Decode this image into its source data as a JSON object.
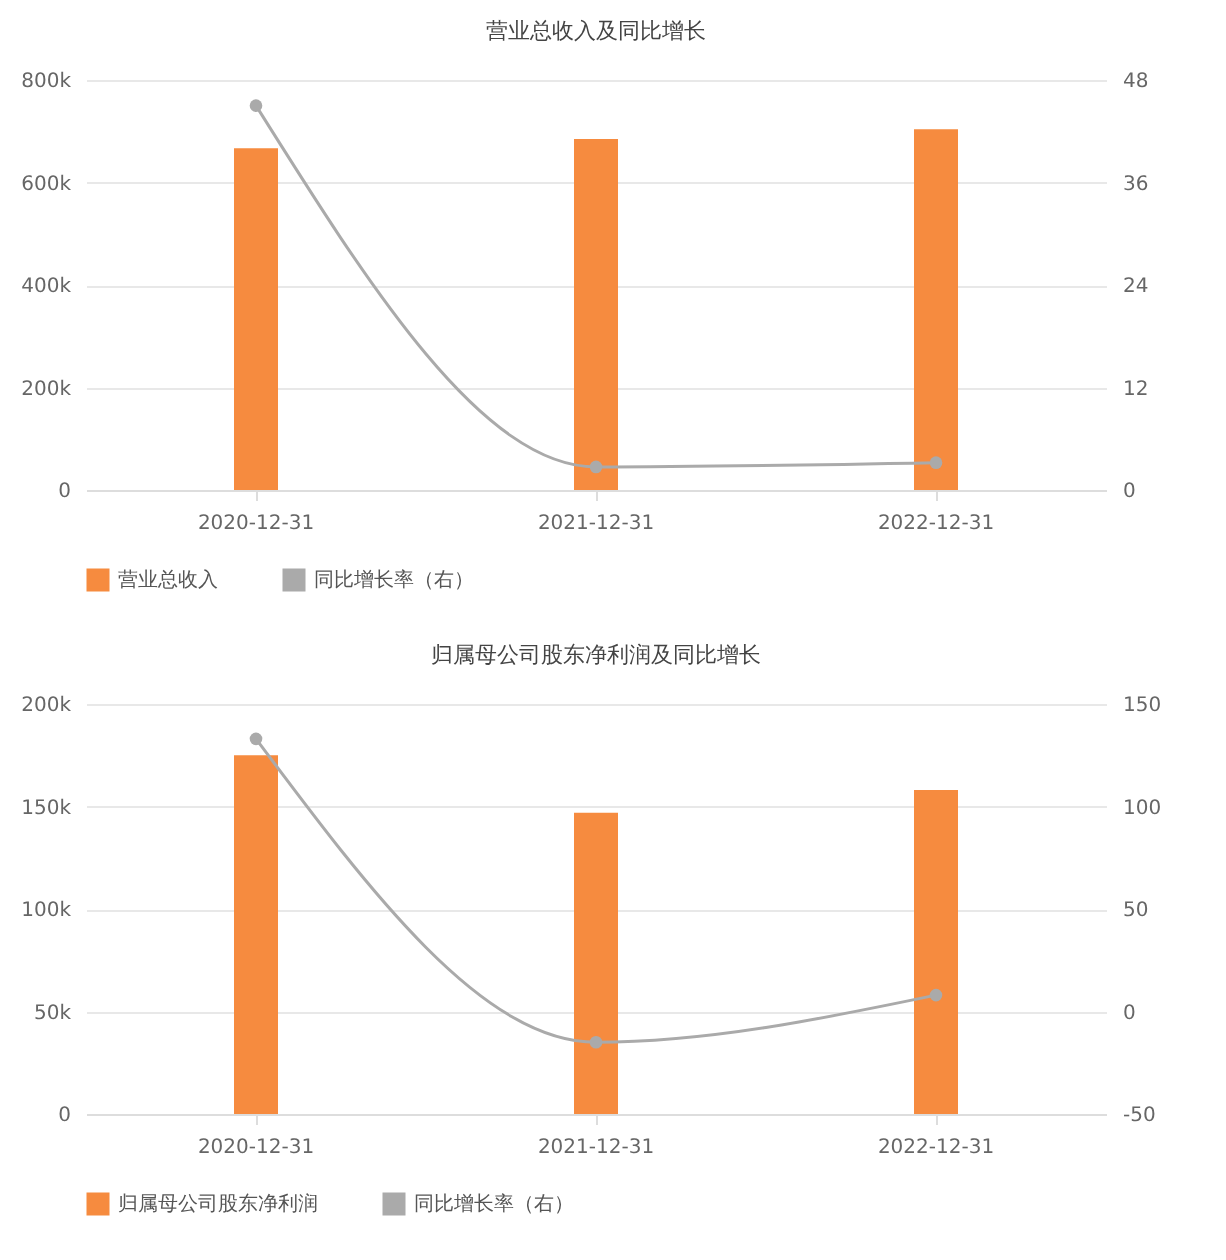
{
  "chart_data": [
    {
      "type": "bar",
      "title": "营业总收入及同比增长",
      "categories": [
        "2020-12-31",
        "2021-12-31",
        "2022-12-31"
      ],
      "series": [
        {
          "name": "营业总收入",
          "color": "#f68b3f",
          "values": [
            667000,
            685000,
            704000
          ]
        },
        {
          "name": "同比增长率（右）",
          "type": "line",
          "axis": "y2",
          "color": "#aaaaaa",
          "values": [
            45.0,
            2.7,
            3.2
          ]
        }
      ],
      "ylim": [
        0,
        800000
      ],
      "yticks": [
        {
          "value": 0,
          "label": "0"
        },
        {
          "value": 200000,
          "label": "200k"
        },
        {
          "value": 400000,
          "label": "400k"
        },
        {
          "value": 600000,
          "label": "600k"
        },
        {
          "value": 800000,
          "label": "800k"
        }
      ],
      "y2lim": [
        0,
        48
      ],
      "y2ticks": [
        0,
        12,
        24,
        36,
        48
      ],
      "grid": "y",
      "legend": "bottom",
      "marker": "circle"
    },
    {
      "type": "bar",
      "title": "归属母公司股东净利润及同比增长",
      "categories": [
        "2020-12-31",
        "2021-12-31",
        "2022-12-31"
      ],
      "series": [
        {
          "name": "归属母公司股东净利润",
          "color": "#f68b3f",
          "values": [
            175000,
            147000,
            158000
          ]
        },
        {
          "name": "同比增长率（右）",
          "type": "line",
          "axis": "y2",
          "color": "#aaaaaa",
          "values": [
            133,
            -15,
            8
          ]
        }
      ],
      "ylim": [
        0,
        200000
      ],
      "yticks": [
        {
          "value": 0,
          "label": "0"
        },
        {
          "value": 50000,
          "label": "50k"
        },
        {
          "value": 100000,
          "label": "100k"
        },
        {
          "value": 150000,
          "label": "150k"
        },
        {
          "value": 200000,
          "label": "200k"
        }
      ],
      "y2lim": [
        -50,
        150
      ],
      "y2ticks": [
        -50,
        0,
        50,
        100,
        150
      ],
      "grid": "y",
      "legend": "bottom",
      "marker": "circle"
    }
  ]
}
